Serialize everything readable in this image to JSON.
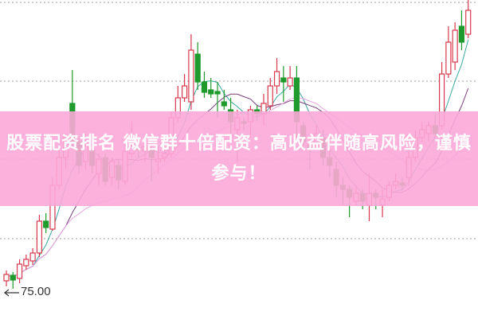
{
  "banner": {
    "text": "股票配资排名  微信群十倍配资：高收益伴随高风险，谨慎参与！"
  },
  "chart_data": {
    "type": "candlestick",
    "title": "",
    "xlabel": "",
    "ylabel": "",
    "ylim": [
      71.7,
      111.8
    ],
    "grid": true,
    "gridlines": [
      111.5,
      101.6,
      91.8,
      81.8
    ],
    "annotation": {
      "text": "75.00",
      "value": 75.0
    },
    "colors": {
      "up": "#d8384e",
      "down": "#1f9a2c",
      "ma5": "#3aa7a0",
      "ma10": "#7a3f7a",
      "ma20": "#e7a6e0",
      "grid": "#999999"
    },
    "moving_averages": [
      "MA5",
      "MA10",
      "MA20"
    ],
    "candles": [
      [
        76.5,
        77.3,
        77.8,
        75.8
      ],
      [
        77.2,
        76.6,
        77.6,
        75.5
      ],
      [
        76.8,
        78.6,
        79.2,
        76.2
      ],
      [
        78.4,
        79.2,
        79.8,
        77.9
      ],
      [
        79.0,
        80.0,
        80.6,
        78.5
      ],
      [
        80.0,
        84.0,
        84.8,
        79.5
      ],
      [
        84.0,
        83.2,
        85.0,
        82.5
      ],
      [
        83.0,
        88.5,
        89.5,
        82.8
      ],
      [
        88.5,
        92.0,
        93.5,
        88.0
      ],
      [
        92.0,
        94.5,
        95.0,
        90.5
      ],
      [
        98.8,
        94.0,
        103.0,
        93.0
      ],
      [
        94.0,
        91.0,
        94.5,
        90.0
      ],
      [
        91.5,
        93.5,
        95.0,
        90.5
      ],
      [
        93.0,
        91.0,
        93.8,
        90.0
      ],
      [
        90.0,
        91.8,
        92.5,
        88.5
      ],
      [
        92.0,
        89.0,
        92.5,
        88.5
      ],
      [
        89.5,
        91.5,
        92.0,
        88.5
      ],
      [
        91.0,
        89.2,
        91.8,
        88.0
      ],
      [
        89.0,
        92.8,
        94.0,
        88.5
      ],
      [
        92.5,
        93.5,
        96.5,
        92.0
      ],
      [
        93.2,
        93.0,
        94.0,
        92.0
      ],
      [
        92.8,
        93.4,
        94.0,
        91.5
      ],
      [
        93.0,
        92.0,
        94.0,
        89.0
      ],
      [
        91.5,
        91.8,
        93.5,
        90.0
      ],
      [
        92.0,
        92.5,
        93.0,
        91.5
      ],
      [
        92.5,
        97.0,
        97.8,
        92.0
      ],
      [
        97.0,
        99.5,
        101.0,
        96.5
      ],
      [
        99.5,
        101.0,
        102.5,
        99.0
      ],
      [
        99.0,
        105.5,
        107.5,
        98.0
      ],
      [
        105.0,
        101.5,
        106.5,
        100.5
      ],
      [
        101.5,
        100.2,
        102.8,
        99.5
      ],
      [
        100.5,
        100.0,
        102.0,
        99.5
      ],
      [
        100.3,
        100.0,
        101.5,
        97.0
      ],
      [
        99.0,
        98.5,
        100.5,
        98.0
      ],
      [
        98.0,
        96.5,
        99.5,
        95.0
      ],
      [
        95.5,
        97.0,
        98.0,
        91.5
      ],
      [
        96.5,
        96.3,
        97.0,
        95.5
      ],
      [
        96.5,
        98.0,
        98.5,
        94.5
      ],
      [
        98.0,
        97.5,
        98.5,
        96.5
      ],
      [
        97.5,
        98.8,
        100.0,
        96.0
      ],
      [
        98.5,
        101.0,
        102.0,
        98.0
      ],
      [
        101.0,
        102.8,
        104.5,
        100.0
      ],
      [
        102.0,
        101.5,
        103.5,
        99.0
      ],
      [
        101.0,
        102.0,
        103.5,
        100.5
      ],
      [
        102.0,
        96.5,
        103.5,
        94.5
      ],
      [
        96.0,
        94.0,
        96.5,
        93.0
      ],
      [
        93.5,
        93.2,
        94.5,
        90.5
      ],
      [
        93.5,
        95.0,
        96.0,
        93.0
      ],
      [
        94.5,
        92.0,
        95.5,
        91.0
      ],
      [
        92.0,
        91.0,
        93.0,
        89.5
      ],
      [
        90.5,
        88.5,
        91.5,
        87.0
      ],
      [
        88.5,
        88.0,
        89.5,
        86.0
      ],
      [
        88.0,
        87.0,
        88.5,
        84.5
      ],
      [
        86.5,
        87.5,
        88.5,
        86.0
      ],
      [
        87.5,
        86.5,
        88.0,
        85.5
      ],
      [
        86.0,
        87.5,
        90.0,
        84.0
      ],
      [
        87.5,
        87.0,
        88.0,
        85.5
      ],
      [
        86.0,
        86.8,
        88.0,
        84.5
      ],
      [
        87.0,
        88.5,
        89.0,
        86.5
      ],
      [
        88.5,
        89.0,
        90.0,
        88.0
      ],
      [
        88.8,
        88.5,
        89.5,
        88.0
      ],
      [
        89.5,
        92.0,
        93.0,
        88.5
      ],
      [
        92.0,
        94.5,
        95.5,
        91.5
      ],
      [
        94.5,
        95.5,
        96.5,
        94.0
      ],
      [
        95.0,
        96.0,
        96.5,
        94.0
      ],
      [
        96.0,
        95.0,
        97.5,
        94.5
      ],
      [
        96.0,
        102.5,
        104.0,
        95.5
      ],
      [
        102.5,
        106.5,
        108.5,
        102.0
      ],
      [
        104.0,
        108.0,
        109.0,
        103.0
      ],
      [
        108.5,
        106.5,
        110.5,
        105.5
      ],
      [
        107.5,
        110.5,
        112.0,
        107.0
      ]
    ]
  }
}
